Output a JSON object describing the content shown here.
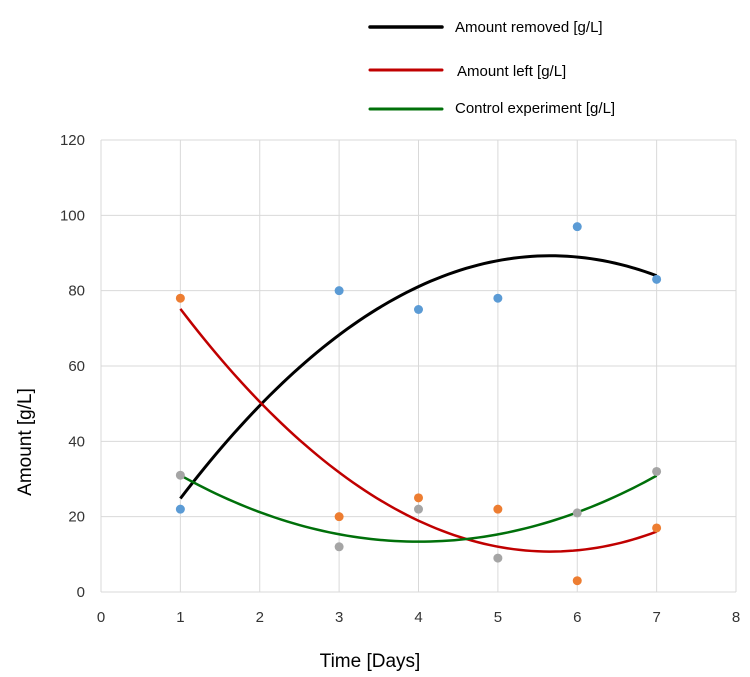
{
  "chart_data": {
    "type": "scatter",
    "xlabel": "Time [Days]",
    "ylabel": "Amount  [g/L]",
    "xlim": [
      0,
      8
    ],
    "ylim": [
      0,
      120
    ],
    "xticks": [
      0,
      1,
      2,
      3,
      4,
      5,
      6,
      7,
      8
    ],
    "yticks": [
      0,
      20,
      40,
      60,
      80,
      100,
      120
    ],
    "grid": true,
    "legend_position": "top",
    "series": [
      {
        "name": "Amount removed [g/L]",
        "marker_color": "#5b9bd5",
        "line_color": "#000000",
        "points": [
          [
            1,
            22
          ],
          [
            3,
            80
          ],
          [
            4,
            75
          ],
          [
            5,
            78
          ],
          [
            6,
            97
          ],
          [
            7,
            83
          ]
        ],
        "trend": "polynomial-2"
      },
      {
        "name": "Amount left [g/L]",
        "marker_color": "#ed7d31",
        "line_color": "#c00000",
        "points": [
          [
            1,
            78
          ],
          [
            3,
            20
          ],
          [
            4,
            25
          ],
          [
            5,
            22
          ],
          [
            6,
            3
          ],
          [
            7,
            17
          ]
        ],
        "trend": "polynomial-2"
      },
      {
        "name": "Control experiment [g/L]",
        "marker_color": "#a5a5a5",
        "line_color": "#00700a",
        "points": [
          [
            1,
            31
          ],
          [
            3,
            12
          ],
          [
            4,
            22
          ],
          [
            5,
            9
          ],
          [
            6,
            21
          ],
          [
            7,
            32
          ]
        ],
        "trend": "polynomial-2"
      }
    ]
  }
}
